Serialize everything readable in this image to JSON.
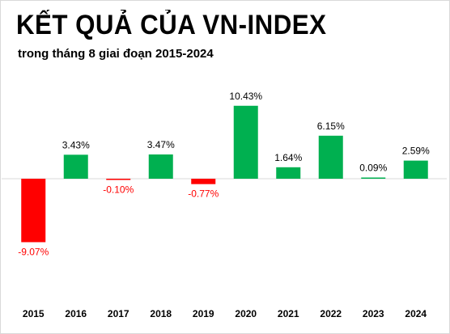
{
  "title": "KẾT QUẢ CỦA VN-INDEX",
  "subtitle": "trong tháng 8 giai đoạn 2015-2024",
  "colors": {
    "positive": "#00b050",
    "negative": "#ff0000",
    "positive_label": "#000000",
    "negative_label": "#ff0000",
    "axis": "#d9d9d9"
  },
  "chart_data": {
    "type": "bar",
    "title": "KẾT QUẢ CỦA VN-INDEX",
    "subtitle": "trong tháng 8 giai đoạn 2015-2024",
    "xlabel": "",
    "ylabel": "",
    "categories": [
      "2015",
      "2016",
      "2017",
      "2018",
      "2019",
      "2020",
      "2021",
      "2022",
      "2023",
      "2024"
    ],
    "values": [
      -9.07,
      3.43,
      -0.1,
      3.47,
      -0.77,
      10.43,
      1.64,
      6.15,
      0.09,
      2.59
    ],
    "labels": [
      "-9.07%",
      "3.43%",
      "-0.10%",
      "3.47%",
      "-0.77%",
      "10.43%",
      "1.64%",
      "6.15%",
      "0.09%",
      "2.59%"
    ],
    "ylim": [
      -9.5,
      11
    ],
    "grid": false,
    "legend": "none"
  }
}
